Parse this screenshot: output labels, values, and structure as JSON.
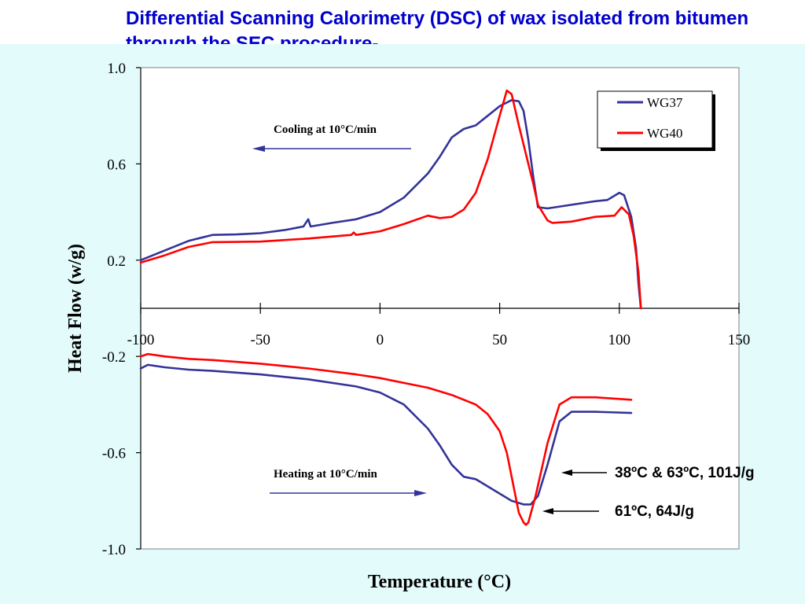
{
  "slide": {
    "title": "Differential Scanning Calorimetry (DSC) of wax isolated from bitumen through the SEC procedure-"
  },
  "colors": {
    "background": "#e3fbfb",
    "title": "#0000cc",
    "WG37": "#333399",
    "WG40": "#ff0000",
    "arrow": "#333399"
  },
  "chart_data": {
    "type": "line",
    "xlabel": "Temperature (°C)",
    "ylabel": "Heat Flow (w/g)",
    "xlim": [
      -100,
      150
    ],
    "ylim": [
      -1.0,
      1.0
    ],
    "x_ticks": [
      "-100",
      "-50",
      "0",
      "50",
      "100",
      "150"
    ],
    "y_ticks": [
      "1.0",
      "0.6",
      "0.2",
      "-0.2",
      "-0.6",
      "-1.0"
    ],
    "grid": false,
    "legend_position": "top-right",
    "series": [
      {
        "name": "WG37",
        "color": "#333399",
        "cooling": [
          [
            -100,
            0.2
          ],
          [
            -90,
            0.24
          ],
          [
            -80,
            0.28
          ],
          [
            -70,
            0.305
          ],
          [
            -60,
            0.307
          ],
          [
            -50,
            0.312
          ],
          [
            -40,
            0.325
          ],
          [
            -32,
            0.34
          ],
          [
            -30,
            0.37
          ],
          [
            -29,
            0.34
          ],
          [
            -20,
            0.355
          ],
          [
            -10,
            0.37
          ],
          [
            0,
            0.4
          ],
          [
            10,
            0.46
          ],
          [
            20,
            0.56
          ],
          [
            25,
            0.63
          ],
          [
            30,
            0.71
          ],
          [
            35,
            0.745
          ],
          [
            40,
            0.76
          ],
          [
            45,
            0.8
          ],
          [
            50,
            0.84
          ],
          [
            55,
            0.865
          ],
          [
            58,
            0.86
          ],
          [
            60,
            0.82
          ],
          [
            62,
            0.7
          ],
          [
            64,
            0.55
          ],
          [
            66,
            0.42
          ],
          [
            70,
            0.415
          ],
          [
            80,
            0.43
          ],
          [
            90,
            0.445
          ],
          [
            95,
            0.45
          ],
          [
            100,
            0.48
          ],
          [
            102,
            0.47
          ],
          [
            105,
            0.38
          ],
          [
            107,
            0.25
          ],
          [
            108,
            0.1
          ],
          [
            109,
            0.0
          ]
        ],
        "heating": [
          [
            -100,
            -0.25
          ],
          [
            -97,
            -0.235
          ],
          [
            -90,
            -0.245
          ],
          [
            -80,
            -0.255
          ],
          [
            -70,
            -0.26
          ],
          [
            -50,
            -0.275
          ],
          [
            -30,
            -0.295
          ],
          [
            -10,
            -0.325
          ],
          [
            0,
            -0.35
          ],
          [
            10,
            -0.4
          ],
          [
            20,
            -0.5
          ],
          [
            25,
            -0.57
          ],
          [
            30,
            -0.65
          ],
          [
            35,
            -0.7
          ],
          [
            40,
            -0.71
          ],
          [
            50,
            -0.77
          ],
          [
            55,
            -0.8
          ],
          [
            60,
            -0.815
          ],
          [
            63,
            -0.815
          ],
          [
            66,
            -0.78
          ],
          [
            70,
            -0.65
          ],
          [
            75,
            -0.47
          ],
          [
            80,
            -0.43
          ],
          [
            90,
            -0.43
          ],
          [
            105,
            -0.435
          ]
        ]
      },
      {
        "name": "WG40",
        "color": "#ff0000",
        "cooling": [
          [
            -100,
            0.19
          ],
          [
            -90,
            0.22
          ],
          [
            -80,
            0.255
          ],
          [
            -70,
            0.275
          ],
          [
            -50,
            0.277
          ],
          [
            -30,
            0.29
          ],
          [
            -12,
            0.305
          ],
          [
            -11,
            0.315
          ],
          [
            -10,
            0.305
          ],
          [
            0,
            0.32
          ],
          [
            10,
            0.35
          ],
          [
            20,
            0.385
          ],
          [
            25,
            0.375
          ],
          [
            30,
            0.38
          ],
          [
            35,
            0.41
          ],
          [
            40,
            0.48
          ],
          [
            45,
            0.62
          ],
          [
            50,
            0.8
          ],
          [
            53,
            0.905
          ],
          [
            55,
            0.89
          ],
          [
            58,
            0.76
          ],
          [
            62,
            0.6
          ],
          [
            64,
            0.52
          ],
          [
            66,
            0.43
          ],
          [
            70,
            0.365
          ],
          [
            72,
            0.355
          ],
          [
            80,
            0.36
          ],
          [
            90,
            0.38
          ],
          [
            98,
            0.385
          ],
          [
            101,
            0.42
          ],
          [
            104,
            0.39
          ],
          [
            106,
            0.3
          ],
          [
            108,
            0.15
          ],
          [
            109,
            0.0
          ]
        ],
        "heating": [
          [
            -100,
            -0.2
          ],
          [
            -97,
            -0.19
          ],
          [
            -90,
            -0.2
          ],
          [
            -80,
            -0.21
          ],
          [
            -70,
            -0.215
          ],
          [
            -50,
            -0.23
          ],
          [
            -30,
            -0.25
          ],
          [
            -10,
            -0.275
          ],
          [
            0,
            -0.29
          ],
          [
            10,
            -0.31
          ],
          [
            20,
            -0.33
          ],
          [
            30,
            -0.36
          ],
          [
            40,
            -0.4
          ],
          [
            45,
            -0.44
          ],
          [
            50,
            -0.51
          ],
          [
            53,
            -0.6
          ],
          [
            56,
            -0.75
          ],
          [
            58,
            -0.85
          ],
          [
            60,
            -0.89
          ],
          [
            61,
            -0.9
          ],
          [
            62,
            -0.89
          ],
          [
            65,
            -0.78
          ],
          [
            70,
            -0.56
          ],
          [
            75,
            -0.4
          ],
          [
            80,
            -0.37
          ],
          [
            90,
            -0.37
          ],
          [
            105,
            -0.38
          ]
        ]
      }
    ],
    "annotations": {
      "cooling": "Cooling at 10°C/min",
      "heating": "Heating at 10°C/min",
      "peak_wg37": "38ºC & 63ºC, 101J/g",
      "peak_wg40": "61ºC, 64J/g"
    }
  }
}
